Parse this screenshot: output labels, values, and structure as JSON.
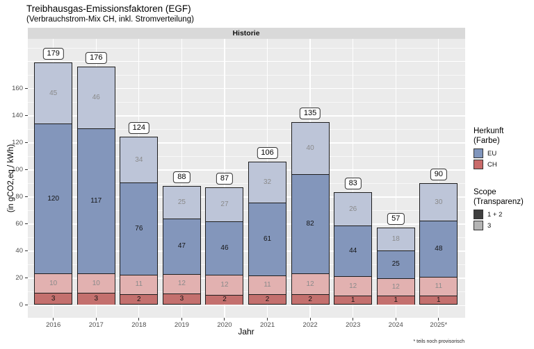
{
  "title": "Treibhausgas-Emissionsfaktoren (EGF)",
  "subtitle": "(Verbrauchstrom-Mix CH, inkl. Stromverteilung)",
  "facet_label": "Historie",
  "axes": {
    "x_title": "Jahr",
    "y_title": "(in gCO2,eq / kWh)"
  },
  "footnote": "* teils noch provisorisch",
  "legend": {
    "herkunft": {
      "title_line1": "Herkunft",
      "title_line2": "(Farbe)",
      "items": [
        {
          "label": "EU",
          "color": "#8095bc"
        },
        {
          "label": "CH",
          "color": "#c96b6a"
        }
      ]
    },
    "scope": {
      "title_line1": "Scope",
      "title_line2": "(Transparenz)",
      "items": [
        {
          "label": "1 + 2",
          "color": "#3f3f3f"
        },
        {
          "label": "3",
          "color": "#b4b4b4"
        }
      ]
    }
  },
  "chart_data": {
    "type": "bar",
    "stacked": true,
    "title": "Treibhausgas-Emissionsfaktoren (EGF)",
    "subtitle": "(Verbrauchstrom-Mix CH, inkl. Stromverteilung)",
    "facet": "Historie",
    "xlabel": "Jahr",
    "ylabel": "(in gCO2,eq / kWh)",
    "categories": [
      "2016",
      "2017",
      "2018",
      "2019",
      "2020",
      "2021",
      "2022",
      "2023",
      "2024",
      "2025*"
    ],
    "totals": [
      179,
      176,
      124,
      88,
      87,
      106,
      135,
      83,
      57,
      90
    ],
    "series": [
      {
        "name": "CH Scope 1 + 2",
        "herkunft": "CH",
        "scope": "1 + 2",
        "color": "#c4706e",
        "label_color": "#141414",
        "values": [
          3,
          3,
          2,
          3,
          2,
          2,
          2,
          1,
          1,
          1
        ]
      },
      {
        "name": "CH Scope 3",
        "herkunft": "CH",
        "scope": "3",
        "color": "#e2b1b0",
        "label_color": "#8a8a8a",
        "values": [
          10,
          10,
          11,
          12,
          12,
          11,
          12,
          12,
          12,
          11
        ]
      },
      {
        "name": "EU Scope 1 + 2",
        "herkunft": "EU",
        "scope": "1 + 2",
        "color": "#8396bb",
        "label_color": "#141414",
        "values": [
          120,
          117,
          76,
          47,
          46,
          61,
          82,
          44,
          25,
          48
        ]
      },
      {
        "name": "EU Scope 3",
        "herkunft": "EU",
        "scope": "3",
        "color": "#bdc5d8",
        "label_color": "#8a8a8a",
        "values": [
          45,
          46,
          34,
          25,
          27,
          32,
          40,
          26,
          18,
          30
        ]
      }
    ],
    "y_ticks": [
      0,
      20,
      40,
      60,
      80,
      100,
      120,
      140,
      160
    ],
    "ylim": [
      0,
      193
    ],
    "grid": true,
    "legend_position": "right"
  }
}
